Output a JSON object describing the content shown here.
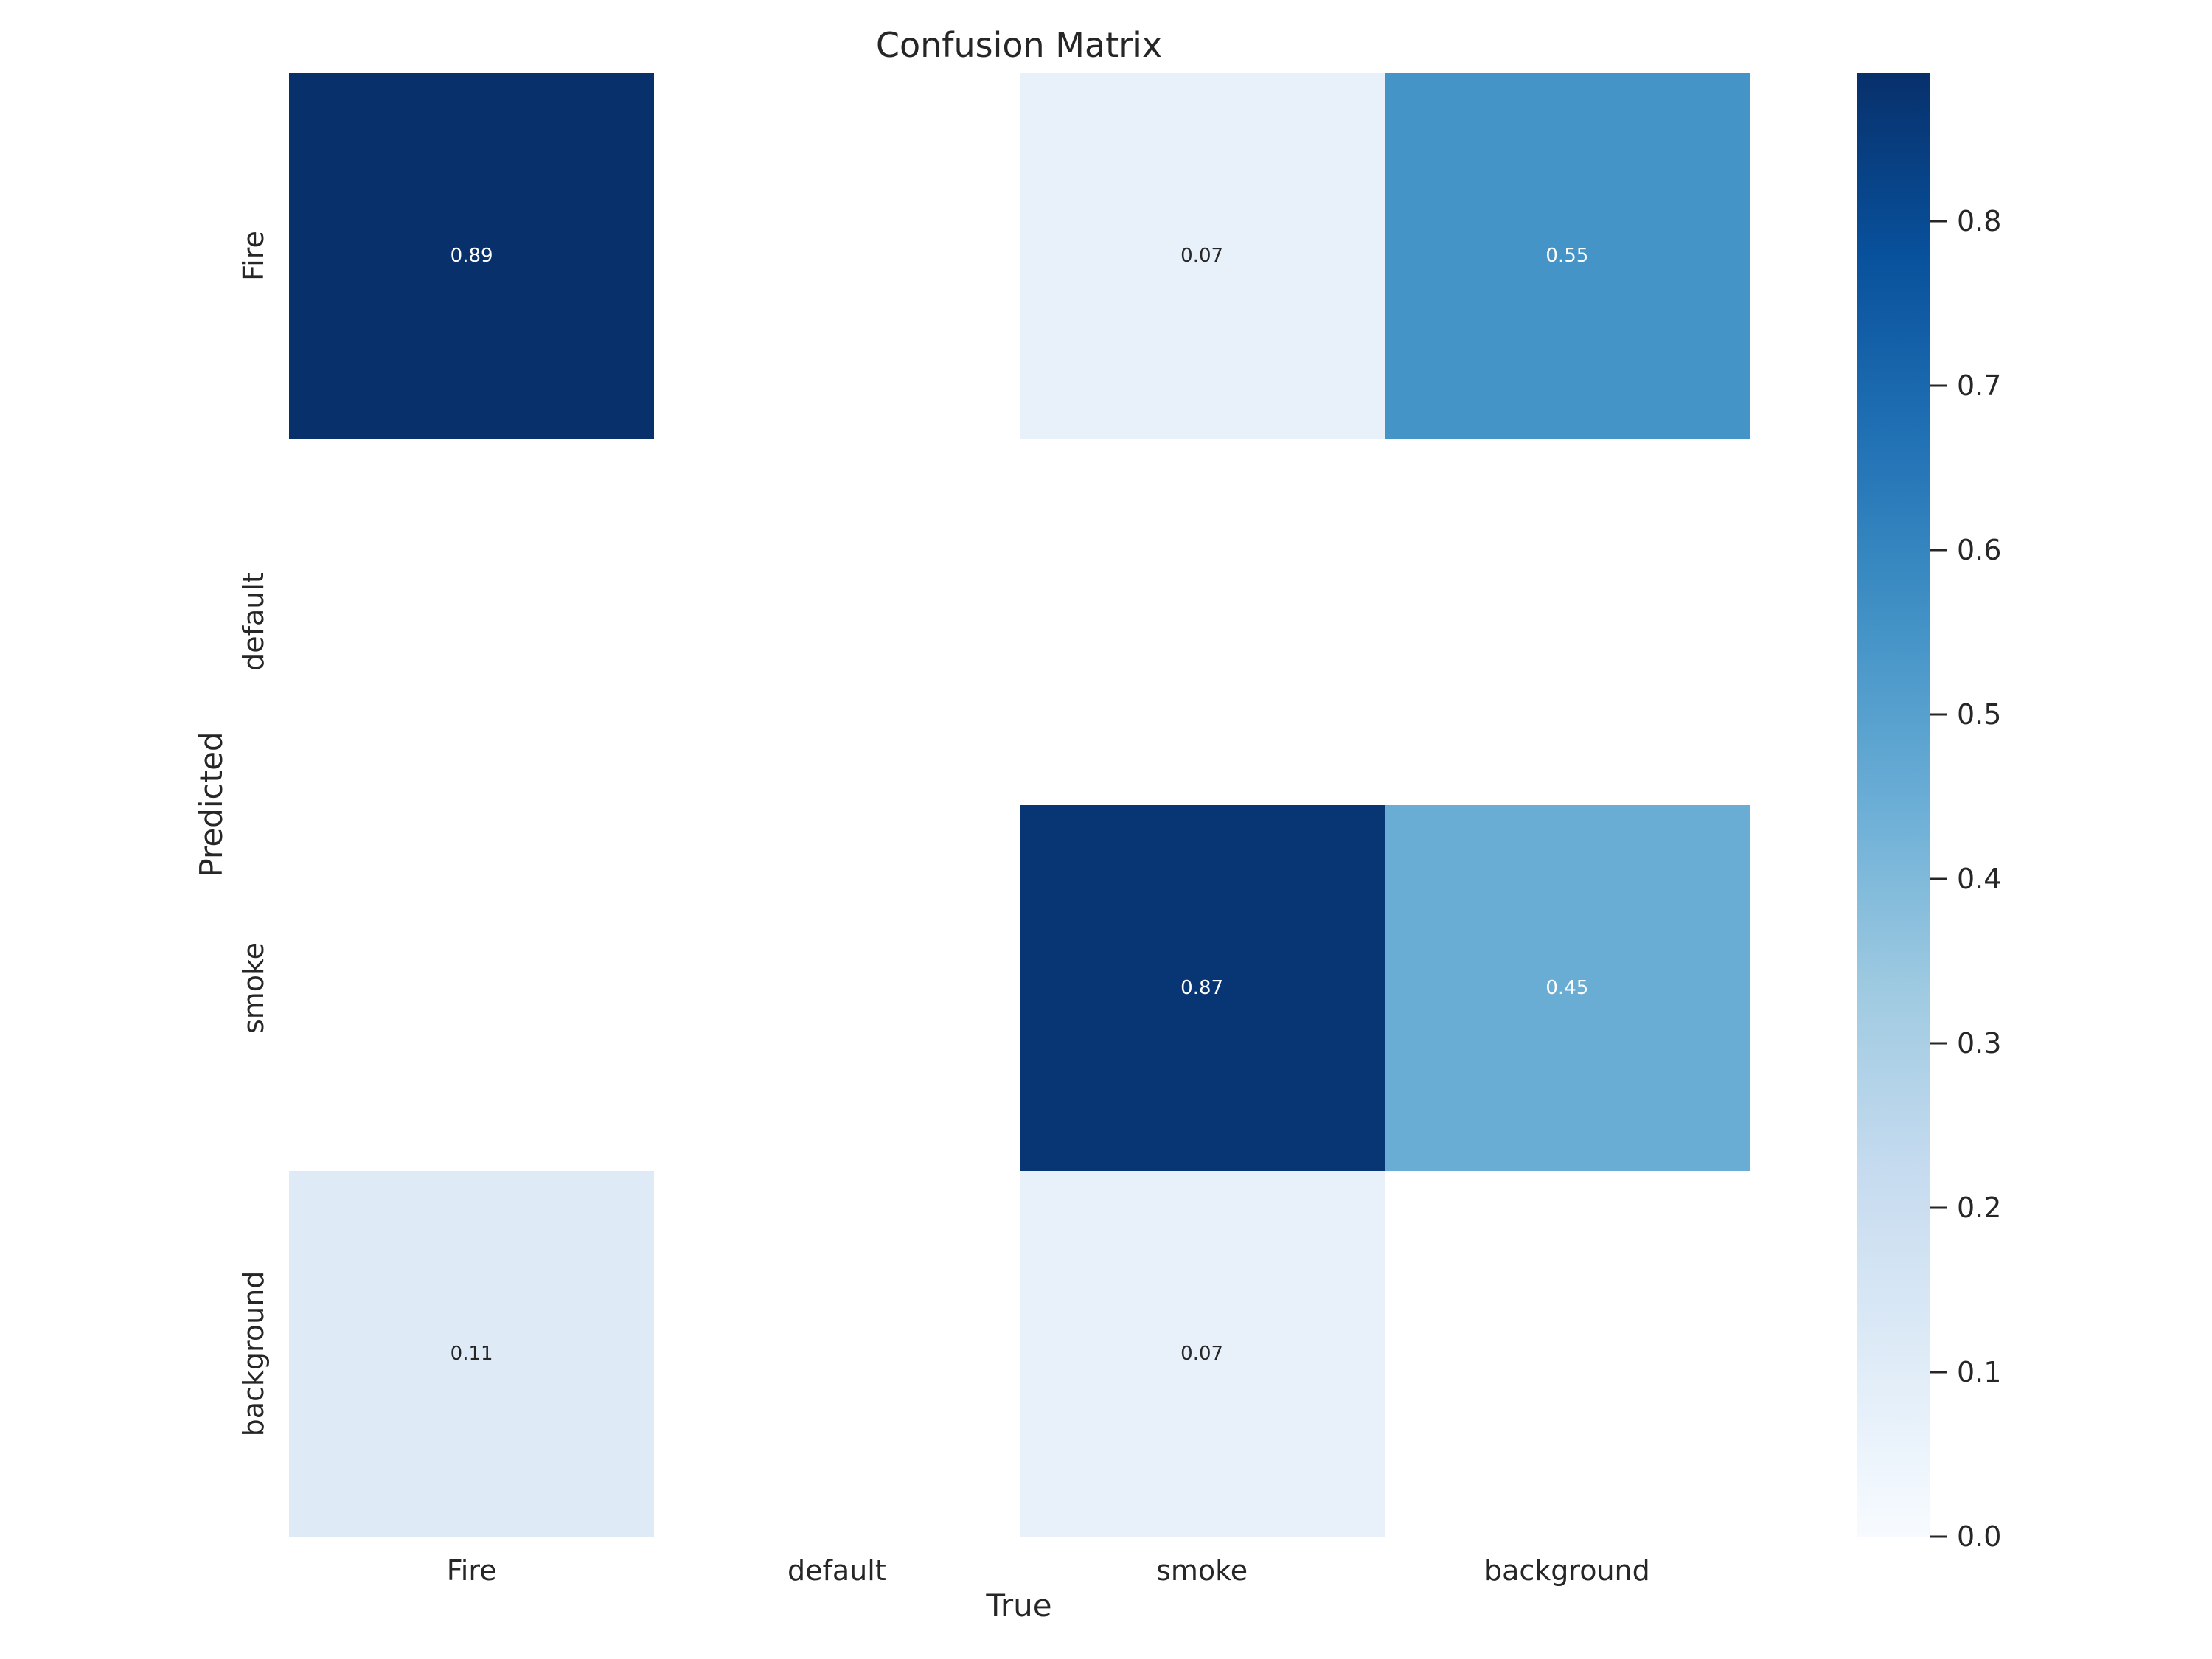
{
  "figure": {
    "background_color": "#ffffff",
    "text_color": "#262626"
  },
  "chart_data": {
    "type": "heatmap",
    "title": "Confusion Matrix",
    "xlabel": "True",
    "ylabel": "Predicted",
    "x_categories": [
      "Fire",
      "default",
      "smoke",
      "background"
    ],
    "y_categories": [
      "Fire",
      "default",
      "smoke",
      "background"
    ],
    "matrix": [
      [
        0.89,
        null,
        0.07,
        0.55
      ],
      [
        null,
        null,
        null,
        null
      ],
      [
        null,
        null,
        0.87,
        0.45
      ],
      [
        0.11,
        null,
        0.07,
        null
      ]
    ],
    "annotations": [
      {
        "row": 0,
        "col": 0,
        "label": "0.89",
        "bg": "#08306b",
        "text_color": "#ffffff"
      },
      {
        "row": 0,
        "col": 2,
        "label": "0.07",
        "bg": "#e8f1fa",
        "text_color": "#262626"
      },
      {
        "row": 0,
        "col": 3,
        "label": "0.55",
        "bg": "#4494c7",
        "text_color": "#ffffff"
      },
      {
        "row": 2,
        "col": 2,
        "label": "0.87",
        "bg": "#083674",
        "text_color": "#ffffff"
      },
      {
        "row": 2,
        "col": 3,
        "label": "0.45",
        "bg": "#69add5",
        "text_color": "#ffffff"
      },
      {
        "row": 3,
        "col": 0,
        "label": "0.11",
        "bg": "#deebf7",
        "text_color": "#262626"
      },
      {
        "row": 3,
        "col": 2,
        "label": "0.07",
        "bg": "#e8f1fa",
        "text_color": "#262626"
      }
    ],
    "empty_cell_color": "#ffffff",
    "colormap": "Blues",
    "vmin": 0.0,
    "vmax": 0.89,
    "grid": false,
    "legend": false,
    "colorbar": {
      "position": "right",
      "tick_labels": [
        "0.0",
        "0.1",
        "0.2",
        "0.3",
        "0.4",
        "0.5",
        "0.6",
        "0.7",
        "0.8"
      ],
      "tick_values": [
        0.0,
        0.1,
        0.2,
        0.3,
        0.4,
        0.5,
        0.6,
        0.7,
        0.8
      ],
      "gradient_stops": [
        {
          "pos": 0.0,
          "color": "#f7fbff"
        },
        {
          "pos": 0.125,
          "color": "#deebf7"
        },
        {
          "pos": 0.25,
          "color": "#c6dbef"
        },
        {
          "pos": 0.375,
          "color": "#9ecae1"
        },
        {
          "pos": 0.5,
          "color": "#6baed6"
        },
        {
          "pos": 0.625,
          "color": "#4292c6"
        },
        {
          "pos": 0.75,
          "color": "#2171b5"
        },
        {
          "pos": 0.875,
          "color": "#08519c"
        },
        {
          "pos": 1.0,
          "color": "#08306b"
        }
      ]
    }
  }
}
